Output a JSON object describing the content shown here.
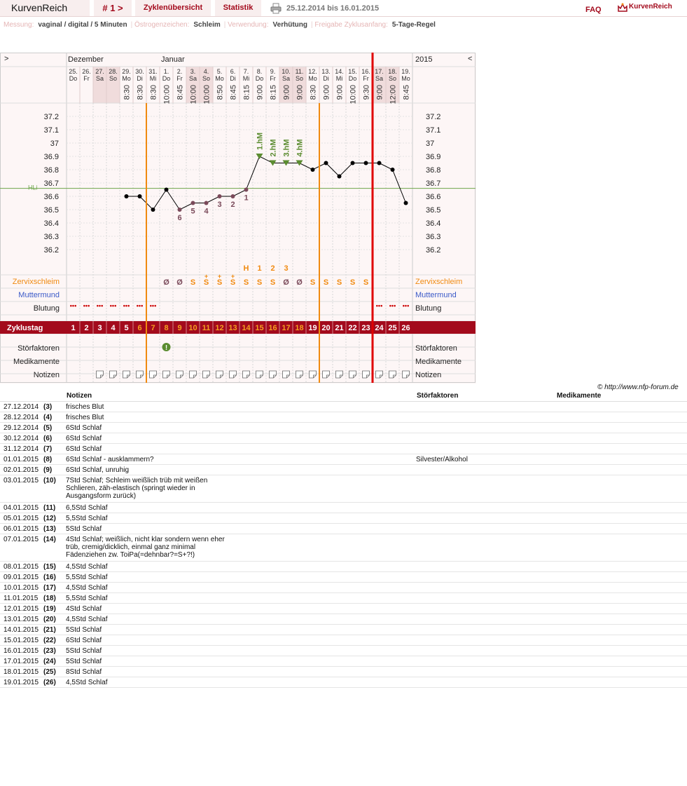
{
  "header": {
    "brand": "KurvenReich",
    "cycle": "# 1 >",
    "overview": "Zyklenübersicht",
    "stats": "Statistik",
    "range": "25.12.2014 bis 16.01.2015",
    "faq": "FAQ",
    "logo": "KurvenReich"
  },
  "info": [
    {
      "k": "Messung:",
      "v": "vaginal / digital / 5 Minuten"
    },
    {
      "k": "Östrogenzeichen:",
      "v": "Schleim"
    },
    {
      "k": "Verwendung:",
      "v": "Verhütung"
    },
    {
      "k": "Freigabe Zyklusanfang:",
      "v": "5-Tage-Regel"
    }
  ],
  "chart_data": {
    "type": "line",
    "nav_prev": ">",
    "nav_next": "<",
    "year": "2015",
    "months": [
      {
        "label": "Dezember",
        "index": 0
      },
      {
        "label": "Januar",
        "index": 7
      }
    ],
    "days": [
      {
        "d": "25.",
        "w": "Do",
        "t": "",
        "we": false
      },
      {
        "d": "26.",
        "w": "Fr",
        "t": "",
        "we": false
      },
      {
        "d": "27.",
        "w": "Sa",
        "t": "",
        "we": true
      },
      {
        "d": "28.",
        "w": "So",
        "t": "",
        "we": true
      },
      {
        "d": "29.",
        "w": "Mo",
        "t": "8:30",
        "we": false
      },
      {
        "d": "30.",
        "w": "Di",
        "t": "8:30",
        "we": false
      },
      {
        "d": "31.",
        "w": "Mi",
        "t": "8:30",
        "we": false
      },
      {
        "d": "1.",
        "w": "Do",
        "t": "10:00",
        "we": false
      },
      {
        "d": "2.",
        "w": "Fr",
        "t": "8:45",
        "we": false
      },
      {
        "d": "3.",
        "w": "Sa",
        "t": "10:00",
        "we": true
      },
      {
        "d": "4.",
        "w": "So",
        "t": "10:00",
        "we": true
      },
      {
        "d": "5.",
        "w": "Mo",
        "t": "8:50",
        "we": false
      },
      {
        "d": "6.",
        "w": "Di",
        "t": "8:45",
        "we": false
      },
      {
        "d": "7.",
        "w": "Mi",
        "t": "8:15",
        "we": false
      },
      {
        "d": "8.",
        "w": "Do",
        "t": "9:00",
        "we": false
      },
      {
        "d": "9.",
        "w": "Fr",
        "t": "8:15",
        "we": false
      },
      {
        "d": "10.",
        "w": "Sa",
        "t": "9:00",
        "we": true
      },
      {
        "d": "11.",
        "w": "So",
        "t": "9:00",
        "we": true
      },
      {
        "d": "12.",
        "w": "Mo",
        "t": "8:30",
        "we": false
      },
      {
        "d": "13.",
        "w": "Di",
        "t": "9:00",
        "we": false
      },
      {
        "d": "14.",
        "w": "Mi",
        "t": "9:00",
        "we": false
      },
      {
        "d": "15.",
        "w": "Do",
        "t": "10:00",
        "we": false
      },
      {
        "d": "16.",
        "w": "Fr",
        "t": "9:30",
        "we": false
      },
      {
        "d": "17.",
        "w": "Sa",
        "t": "9:00",
        "we": true
      },
      {
        "d": "18.",
        "w": "So",
        "t": "12:00",
        "we": true
      },
      {
        "d": "19.",
        "w": "Mo",
        "t": "8:45",
        "we": false
      }
    ],
    "yticks": [
      37.2,
      37.1,
      37.0,
      36.9,
      36.8,
      36.7,
      36.6,
      36.5,
      36.4,
      36.3,
      36.2
    ],
    "ytick_labels": [
      "37.2",
      "37.1",
      "37",
      "36.9",
      "36.8",
      "36.7",
      "36.6",
      "36.5",
      "36.4",
      "36.3",
      "36.2"
    ],
    "temps": [
      null,
      null,
      null,
      null,
      36.6,
      36.6,
      36.5,
      36.65,
      36.5,
      36.55,
      36.55,
      36.6,
      36.6,
      36.65,
      36.9,
      36.85,
      36.85,
      36.85,
      36.8,
      36.85,
      36.75,
      36.85,
      36.85,
      36.85,
      36.8,
      36.55
    ],
    "low_markers": [
      {
        "i": 8,
        "label": "6"
      },
      {
        "i": 9,
        "label": "5"
      },
      {
        "i": 10,
        "label": "4"
      },
      {
        "i": 11,
        "label": "3"
      },
      {
        "i": 12,
        "label": "2"
      },
      {
        "i": 13,
        "label": "1"
      }
    ],
    "high_markers": [
      {
        "i": 14,
        "label": "1.hM"
      },
      {
        "i": 15,
        "label": "2.hM"
      },
      {
        "i": 16,
        "label": "3.hM"
      },
      {
        "i": 17,
        "label": "4.hM"
      }
    ],
    "cover_line": {
      "value": 36.66,
      "label": "HLi"
    },
    "peak_labels": [
      {
        "i": 13,
        "label": "H"
      },
      {
        "i": 14,
        "label": "1"
      },
      {
        "i": 15,
        "label": "2"
      },
      {
        "i": 16,
        "label": "3"
      }
    ],
    "vlines": [
      {
        "after": 5,
        "color": "#f08a10"
      },
      {
        "after": 18,
        "color": "#f08a10"
      },
      {
        "after": 22,
        "color": "#e00000"
      }
    ],
    "rows": {
      "cervix": "Zervixschleim",
      "cm": "Muttermund",
      "bleed": "Blutung",
      "cycleday": "Zyklustag",
      "stoer": "Störfaktoren",
      "med": "Medikamente",
      "notes": "Notizen"
    },
    "mucus": [
      null,
      null,
      null,
      null,
      null,
      null,
      null,
      "Ø",
      "Ø",
      "S",
      "S+",
      "S+",
      "S+",
      "S",
      "S",
      "S",
      "Ø",
      "Ø",
      "S",
      "S",
      "S",
      "S",
      "S",
      null,
      null,
      null
    ],
    "bleeding": [
      true,
      true,
      true,
      true,
      true,
      true,
      true,
      false,
      false,
      false,
      false,
      false,
      false,
      false,
      false,
      false,
      false,
      false,
      false,
      false,
      false,
      false,
      false,
      true,
      true,
      true
    ],
    "bleed_symbol": "•••",
    "cycle_days": [
      "1",
      "2",
      "3",
      "4",
      "5",
      "6",
      "7",
      "8",
      "9",
      "10",
      "11",
      "12",
      "13",
      "14",
      "15",
      "16",
      "17",
      "18",
      "19",
      "20",
      "21",
      "22",
      "23",
      "24",
      "25",
      "26"
    ],
    "stoer_index": 7,
    "stoer_symbol": "!",
    "note_start": 2
  },
  "credit": "© http://www.nfp-forum.de",
  "notes_header": {
    "notes": "Notizen",
    "stoer": "Störfaktoren",
    "med": "Medikamente"
  },
  "notes": [
    {
      "d": "27.12.2014",
      "n": "(3)",
      "t": "frisches Blut",
      "s": ""
    },
    {
      "d": "28.12.2014",
      "n": "(4)",
      "t": "frisches Blut",
      "s": ""
    },
    {
      "d": "29.12.2014",
      "n": "(5)",
      "t": "6Std Schlaf",
      "s": ""
    },
    {
      "d": "30.12.2014",
      "n": "(6)",
      "t": "6Std Schlaf",
      "s": ""
    },
    {
      "d": "31.12.2014",
      "n": "(7)",
      "t": "6Std Schlaf",
      "s": ""
    },
    {
      "d": "01.01.2015",
      "n": "(8)",
      "t": "6Std Schlaf - ausklammern?",
      "s": "Silvester/Alkohol"
    },
    {
      "d": "02.01.2015",
      "n": "(9)",
      "t": "6Std Schlaf, unruhig",
      "s": ""
    },
    {
      "d": "03.01.2015",
      "n": "(10)",
      "t": "7Std Schlaf; Schleim weißlich trüb mit weißen Schlieren, zäh-elastisch (springt wieder in Ausgangsform zurück)",
      "s": "",
      "tall": true
    },
    {
      "d": "04.01.2015",
      "n": "(11)",
      "t": "6,5Std Schlaf",
      "s": ""
    },
    {
      "d": "05.01.2015",
      "n": "(12)",
      "t": "5,5Std Schlaf",
      "s": ""
    },
    {
      "d": "06.01.2015",
      "n": "(13)",
      "t": "5Std Schlaf",
      "s": ""
    },
    {
      "d": "07.01.2015",
      "n": "(14)",
      "t": "4Std Schlaf; weißlich, nicht klar sondern wenn eher trüb, cremig/dicklich, einmal ganz minimal Fädenziehen zw. ToiPa(=dehnbar?=S+?!)",
      "s": "",
      "tall": true
    },
    {
      "d": "08.01.2015",
      "n": "(15)",
      "t": "4,5Std Schlaf",
      "s": ""
    },
    {
      "d": "09.01.2015",
      "n": "(16)",
      "t": "5,5Std Schlaf",
      "s": ""
    },
    {
      "d": "10.01.2015",
      "n": "(17)",
      "t": "4,5Std Schlaf",
      "s": ""
    },
    {
      "d": "11.01.2015",
      "n": "(18)",
      "t": "5,5Std Schlaf",
      "s": ""
    },
    {
      "d": "12.01.2015",
      "n": "(19)",
      "t": "4Std Schlaf",
      "s": ""
    },
    {
      "d": "13.01.2015",
      "n": "(20)",
      "t": "4,5Std Schlaf",
      "s": ""
    },
    {
      "d": "14.01.2015",
      "n": "(21)",
      "t": "5Std Schlaf",
      "s": ""
    },
    {
      "d": "15.01.2015",
      "n": "(22)",
      "t": "6Std Schlaf",
      "s": ""
    },
    {
      "d": "16.01.2015",
      "n": "(23)",
      "t": "5Std Schlaf",
      "s": ""
    },
    {
      "d": "17.01.2015",
      "n": "(24)",
      "t": "5Std Schlaf",
      "s": ""
    },
    {
      "d": "18.01.2015",
      "n": "(25)",
      "t": "8Std Schlaf",
      "s": ""
    },
    {
      "d": "19.01.2015",
      "n": "(26)",
      "t": "4,5Std Schlaf",
      "s": ""
    }
  ]
}
